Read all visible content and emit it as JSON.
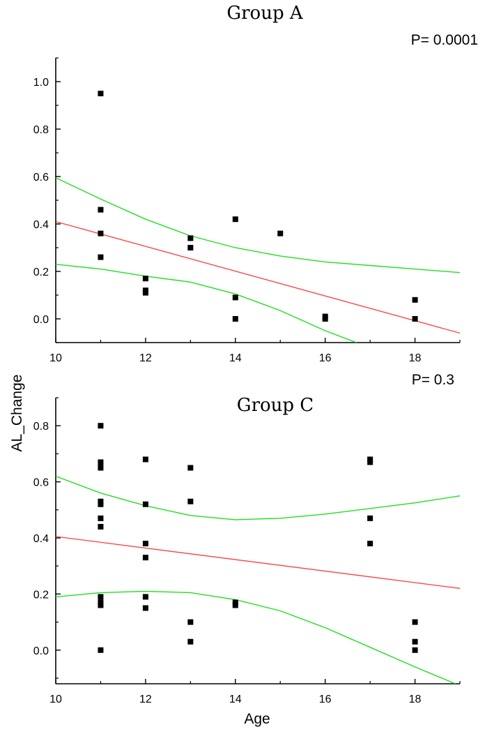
{
  "chart_data": [
    {
      "type": "scatter",
      "title": "Group A",
      "p_value": "P= 0.0001",
      "xlabel": "Age",
      "ylabel": "AL_Change",
      "xlim": [
        10,
        19
      ],
      "ylim": [
        -0.1,
        1.1
      ],
      "xticks": [
        10,
        12,
        14,
        16,
        18
      ],
      "xtick_labels": [
        "10",
        "12",
        "14",
        "16",
        "18"
      ],
      "yticks": [
        0.0,
        0.2,
        0.4,
        0.6,
        0.8,
        1.0
      ],
      "ytick_labels": [
        "0.0",
        "0.2",
        "0.4",
        "0.6",
        "0.8",
        "1.0"
      ],
      "points": [
        {
          "x": 11,
          "y": 0.95
        },
        {
          "x": 11,
          "y": 0.46
        },
        {
          "x": 11,
          "y": 0.36
        },
        {
          "x": 11,
          "y": 0.26
        },
        {
          "x": 12,
          "y": 0.17
        },
        {
          "x": 12,
          "y": 0.12
        },
        {
          "x": 12,
          "y": 0.11
        },
        {
          "x": 13,
          "y": 0.34
        },
        {
          "x": 13,
          "y": 0.3
        },
        {
          "x": 14,
          "y": 0.42
        },
        {
          "x": 14,
          "y": 0.09
        },
        {
          "x": 14,
          "y": 0.0
        },
        {
          "x": 15,
          "y": 0.36
        },
        {
          "x": 16,
          "y": 0.01
        },
        {
          "x": 16,
          "y": 0.0
        },
        {
          "x": 18,
          "y": 0.08
        },
        {
          "x": 18,
          "y": 0.0
        }
      ],
      "fit_line": {
        "color": "#ff3c3c",
        "x": [
          10,
          19
        ],
        "y": [
          0.41,
          -0.06
        ]
      },
      "confidence_bands": {
        "color": "#22dd22",
        "upper": {
          "x": [
            10,
            11,
            12,
            13,
            14,
            15,
            16,
            17,
            18,
            19
          ],
          "y": [
            0.595,
            0.505,
            0.42,
            0.35,
            0.3,
            0.265,
            0.24,
            0.225,
            0.21,
            0.195
          ]
        },
        "lower": {
          "x": [
            10,
            11,
            12,
            13,
            14,
            15,
            16,
            16.7
          ],
          "y": [
            0.23,
            0.21,
            0.18,
            0.155,
            0.105,
            0.035,
            -0.05,
            -0.1
          ]
        }
      }
    },
    {
      "type": "scatter",
      "title": "Group C",
      "p_value": "P= 0.3",
      "xlabel": "Age",
      "ylabel": "AL_Change",
      "xlim": [
        10,
        19
      ],
      "ylim": [
        -0.12,
        0.9
      ],
      "xticks": [
        10,
        12,
        14,
        16,
        18
      ],
      "xtick_labels": [
        "10",
        "12",
        "14",
        "16",
        "18"
      ],
      "yticks": [
        0.0,
        0.2,
        0.4,
        0.6,
        0.8
      ],
      "ytick_labels": [
        "0.0",
        "0.2",
        "0.4",
        "0.6",
        "0.8"
      ],
      "points": [
        {
          "x": 11,
          "y": 0.8
        },
        {
          "x": 11,
          "y": 0.67
        },
        {
          "x": 11,
          "y": 0.65
        },
        {
          "x": 11,
          "y": 0.53
        },
        {
          "x": 11,
          "y": 0.52
        },
        {
          "x": 11,
          "y": 0.47
        },
        {
          "x": 11,
          "y": 0.44
        },
        {
          "x": 11,
          "y": 0.19
        },
        {
          "x": 11,
          "y": 0.17
        },
        {
          "x": 11,
          "y": 0.16
        },
        {
          "x": 11,
          "y": 0.0
        },
        {
          "x": 12,
          "y": 0.68
        },
        {
          "x": 12,
          "y": 0.52
        },
        {
          "x": 12,
          "y": 0.38
        },
        {
          "x": 12,
          "y": 0.33
        },
        {
          "x": 12,
          "y": 0.19
        },
        {
          "x": 12,
          "y": 0.15
        },
        {
          "x": 13,
          "y": 0.65
        },
        {
          "x": 13,
          "y": 0.53
        },
        {
          "x": 13,
          "y": 0.1
        },
        {
          "x": 13,
          "y": 0.03
        },
        {
          "x": 14,
          "y": 0.17
        },
        {
          "x": 14,
          "y": 0.16
        },
        {
          "x": 17,
          "y": 0.68
        },
        {
          "x": 17,
          "y": 0.67
        },
        {
          "x": 17,
          "y": 0.47
        },
        {
          "x": 17,
          "y": 0.38
        },
        {
          "x": 18,
          "y": 0.1
        },
        {
          "x": 18,
          "y": 0.03
        },
        {
          "x": 18,
          "y": 0.0
        }
      ],
      "fit_line": {
        "color": "#ff3c3c",
        "x": [
          10,
          19
        ],
        "y": [
          0.405,
          0.22
        ]
      },
      "confidence_bands": {
        "color": "#22dd22",
        "upper": {
          "x": [
            10,
            11,
            12,
            13,
            14,
            15,
            16,
            17,
            18,
            19
          ],
          "y": [
            0.62,
            0.56,
            0.515,
            0.48,
            0.465,
            0.47,
            0.485,
            0.505,
            0.525,
            0.55
          ]
        },
        "lower": {
          "x": [
            10,
            11,
            12,
            13,
            14,
            15,
            16,
            17,
            18,
            18.9
          ],
          "y": [
            0.19,
            0.205,
            0.21,
            0.205,
            0.18,
            0.14,
            0.08,
            0.01,
            -0.06,
            -0.12
          ]
        }
      }
    }
  ]
}
